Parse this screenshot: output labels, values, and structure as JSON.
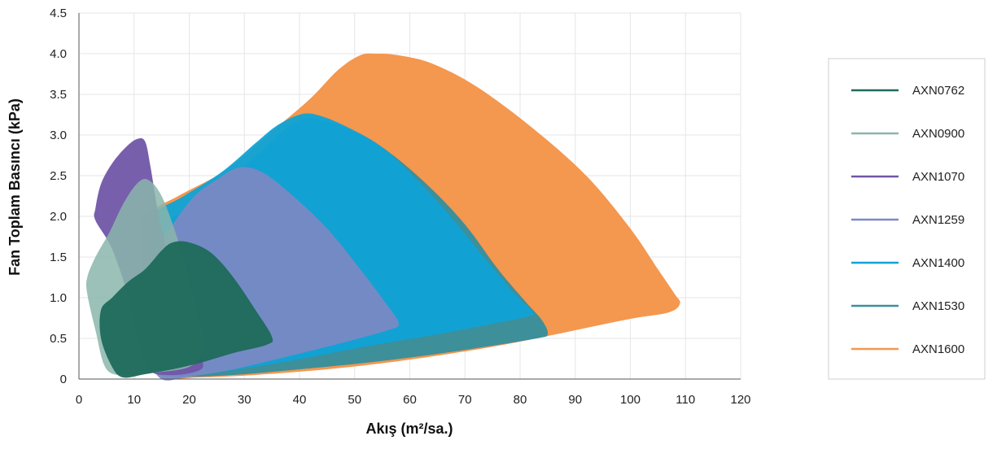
{
  "chart_data": {
    "type": "area",
    "xlabel": "Akış (m²/sa.)",
    "ylabel": "Fan Toplam Basıncı (kPa)",
    "xlim": [
      0,
      120
    ],
    "ylim": [
      0,
      4.5
    ],
    "xticks": [
      "0",
      "10",
      "20",
      "30",
      "40",
      "50",
      "60",
      "70",
      "80",
      "90",
      "100",
      "110",
      "120"
    ],
    "yticks": [
      "0",
      "0.5",
      "1.0",
      "1.5",
      "2.0",
      "2.5",
      "3.0",
      "3.5",
      "4.0",
      "4.5"
    ],
    "grid": true,
    "legend_position": "right",
    "series": [
      {
        "name": "AXN1600",
        "color": "#F4974F",
        "points": [
          [
            12,
            2.0
          ],
          [
            18,
            2.25
          ],
          [
            25,
            2.5
          ],
          [
            30,
            2.75
          ],
          [
            36,
            3.1
          ],
          [
            42,
            3.45
          ],
          [
            47,
            3.8
          ],
          [
            51,
            3.98
          ],
          [
            54,
            4.0
          ],
          [
            58,
            3.98
          ],
          [
            64,
            3.88
          ],
          [
            72,
            3.6
          ],
          [
            82,
            3.1
          ],
          [
            92,
            2.5
          ],
          [
            100,
            1.85
          ],
          [
            105,
            1.35
          ],
          [
            108,
            1.05
          ],
          [
            109,
            0.93
          ],
          [
            107,
            0.82
          ],
          [
            100,
            0.74
          ],
          [
            90,
            0.6
          ],
          [
            80,
            0.46
          ],
          [
            70,
            0.34
          ],
          [
            58,
            0.22
          ],
          [
            45,
            0.12
          ],
          [
            32,
            0.05
          ],
          [
            22,
            0.02
          ],
          [
            17,
            0.03
          ],
          [
            14,
            0.3
          ],
          [
            12,
            1.0
          ],
          [
            11.5,
            1.6
          ]
        ]
      },
      {
        "name": "AXN1530",
        "color": "#3D8F9A",
        "points": [
          [
            14,
            1.85
          ],
          [
            20,
            2.1
          ],
          [
            27,
            2.45
          ],
          [
            33,
            2.8
          ],
          [
            37,
            3.05
          ],
          [
            40,
            3.18
          ],
          [
            43,
            3.2
          ],
          [
            48,
            3.1
          ],
          [
            55,
            2.85
          ],
          [
            63,
            2.4
          ],
          [
            70,
            1.9
          ],
          [
            76,
            1.35
          ],
          [
            81,
            0.95
          ],
          [
            84,
            0.72
          ],
          [
            85,
            0.55
          ],
          [
            83,
            0.5
          ],
          [
            74,
            0.4
          ],
          [
            64,
            0.3
          ],
          [
            52,
            0.2
          ],
          [
            40,
            0.12
          ],
          [
            28,
            0.05
          ],
          [
            18,
            0.03
          ],
          [
            14,
            0.1
          ],
          [
            12,
            0.6
          ],
          [
            12,
            1.3
          ]
        ]
      },
      {
        "name": "AXN1400",
        "color": "#0FA3D6",
        "points": [
          [
            13,
            2.0
          ],
          [
            19,
            2.25
          ],
          [
            26,
            2.55
          ],
          [
            32,
            2.9
          ],
          [
            36,
            3.12
          ],
          [
            40,
            3.25
          ],
          [
            43,
            3.25
          ],
          [
            48,
            3.12
          ],
          [
            55,
            2.85
          ],
          [
            62,
            2.4
          ],
          [
            68,
            1.95
          ],
          [
            74,
            1.45
          ],
          [
            79,
            1.05
          ],
          [
            82,
            0.85
          ],
          [
            82,
            0.78
          ],
          [
            75,
            0.68
          ],
          [
            65,
            0.55
          ],
          [
            52,
            0.4
          ],
          [
            38,
            0.22
          ],
          [
            25,
            0.08
          ],
          [
            18,
            0.03
          ],
          [
            15,
            0.2
          ],
          [
            13,
            0.9
          ],
          [
            12.5,
            1.6
          ]
        ]
      },
      {
        "name": "AXN1259",
        "color": "#7A89C4",
        "points": [
          [
            14,
            1.55
          ],
          [
            17,
            1.9
          ],
          [
            21,
            2.25
          ],
          [
            25,
            2.45
          ],
          [
            29,
            2.6
          ],
          [
            33,
            2.55
          ],
          [
            38,
            2.3
          ],
          [
            45,
            1.85
          ],
          [
            51,
            1.35
          ],
          [
            56,
            0.9
          ],
          [
            58,
            0.68
          ],
          [
            56,
            0.6
          ],
          [
            48,
            0.45
          ],
          [
            38,
            0.28
          ],
          [
            28,
            0.12
          ],
          [
            20,
            0.03
          ],
          [
            15,
            0.0
          ],
          [
            13,
            0.3
          ],
          [
            13,
            1.0
          ]
        ]
      },
      {
        "name": "AXN1070",
        "color": "#7156A8",
        "points": [
          [
            3,
            2.1
          ],
          [
            4,
            2.4
          ],
          [
            6,
            2.65
          ],
          [
            8.5,
            2.85
          ],
          [
            10.5,
            2.95
          ],
          [
            12,
            2.92
          ],
          [
            13,
            2.6
          ],
          [
            14.5,
            2.0
          ],
          [
            17,
            1.3
          ],
          [
            19.5,
            0.75
          ],
          [
            21.5,
            0.35
          ],
          [
            22.5,
            0.15
          ],
          [
            20,
            0.07
          ],
          [
            16,
            0.05
          ],
          [
            13,
            0.1
          ],
          [
            11,
            0.4
          ],
          [
            9,
            1.0
          ],
          [
            6,
            1.6
          ],
          [
            3,
            1.95
          ]
        ]
      },
      {
        "name": "AXN0900",
        "color": "#89B6AB",
        "points": [
          [
            1.5,
            1.25
          ],
          [
            3,
            1.5
          ],
          [
            5.5,
            1.8
          ],
          [
            8,
            2.15
          ],
          [
            10.5,
            2.4
          ],
          [
            12.5,
            2.45
          ],
          [
            15,
            2.25
          ],
          [
            18,
            1.7
          ],
          [
            20,
            1.2
          ],
          [
            22,
            0.7
          ],
          [
            22.5,
            0.35
          ],
          [
            20,
            0.15
          ],
          [
            14,
            0.08
          ],
          [
            9,
            0.05
          ],
          [
            5,
            0.12
          ],
          [
            3,
            0.6
          ],
          [
            1.5,
            1.05
          ]
        ]
      },
      {
        "name": "AXN0762",
        "color": "#1D6A5B",
        "points": [
          [
            4,
            0.85
          ],
          [
            6,
            1.0
          ],
          [
            9,
            1.2
          ],
          [
            12,
            1.35
          ],
          [
            15,
            1.58
          ],
          [
            17,
            1.68
          ],
          [
            20,
            1.68
          ],
          [
            24,
            1.55
          ],
          [
            28,
            1.25
          ],
          [
            32,
            0.85
          ],
          [
            35,
            0.52
          ],
          [
            34,
            0.42
          ],
          [
            28,
            0.32
          ],
          [
            22,
            0.2
          ],
          [
            17,
            0.12
          ],
          [
            12,
            0.06
          ],
          [
            8,
            0.02
          ],
          [
            6,
            0.15
          ],
          [
            4,
            0.5
          ]
        ]
      }
    ],
    "legend_order": [
      "AXN0762",
      "AXN0900",
      "AXN1070",
      "AXN1259",
      "AXN1400",
      "AXN1530",
      "AXN1600"
    ]
  }
}
